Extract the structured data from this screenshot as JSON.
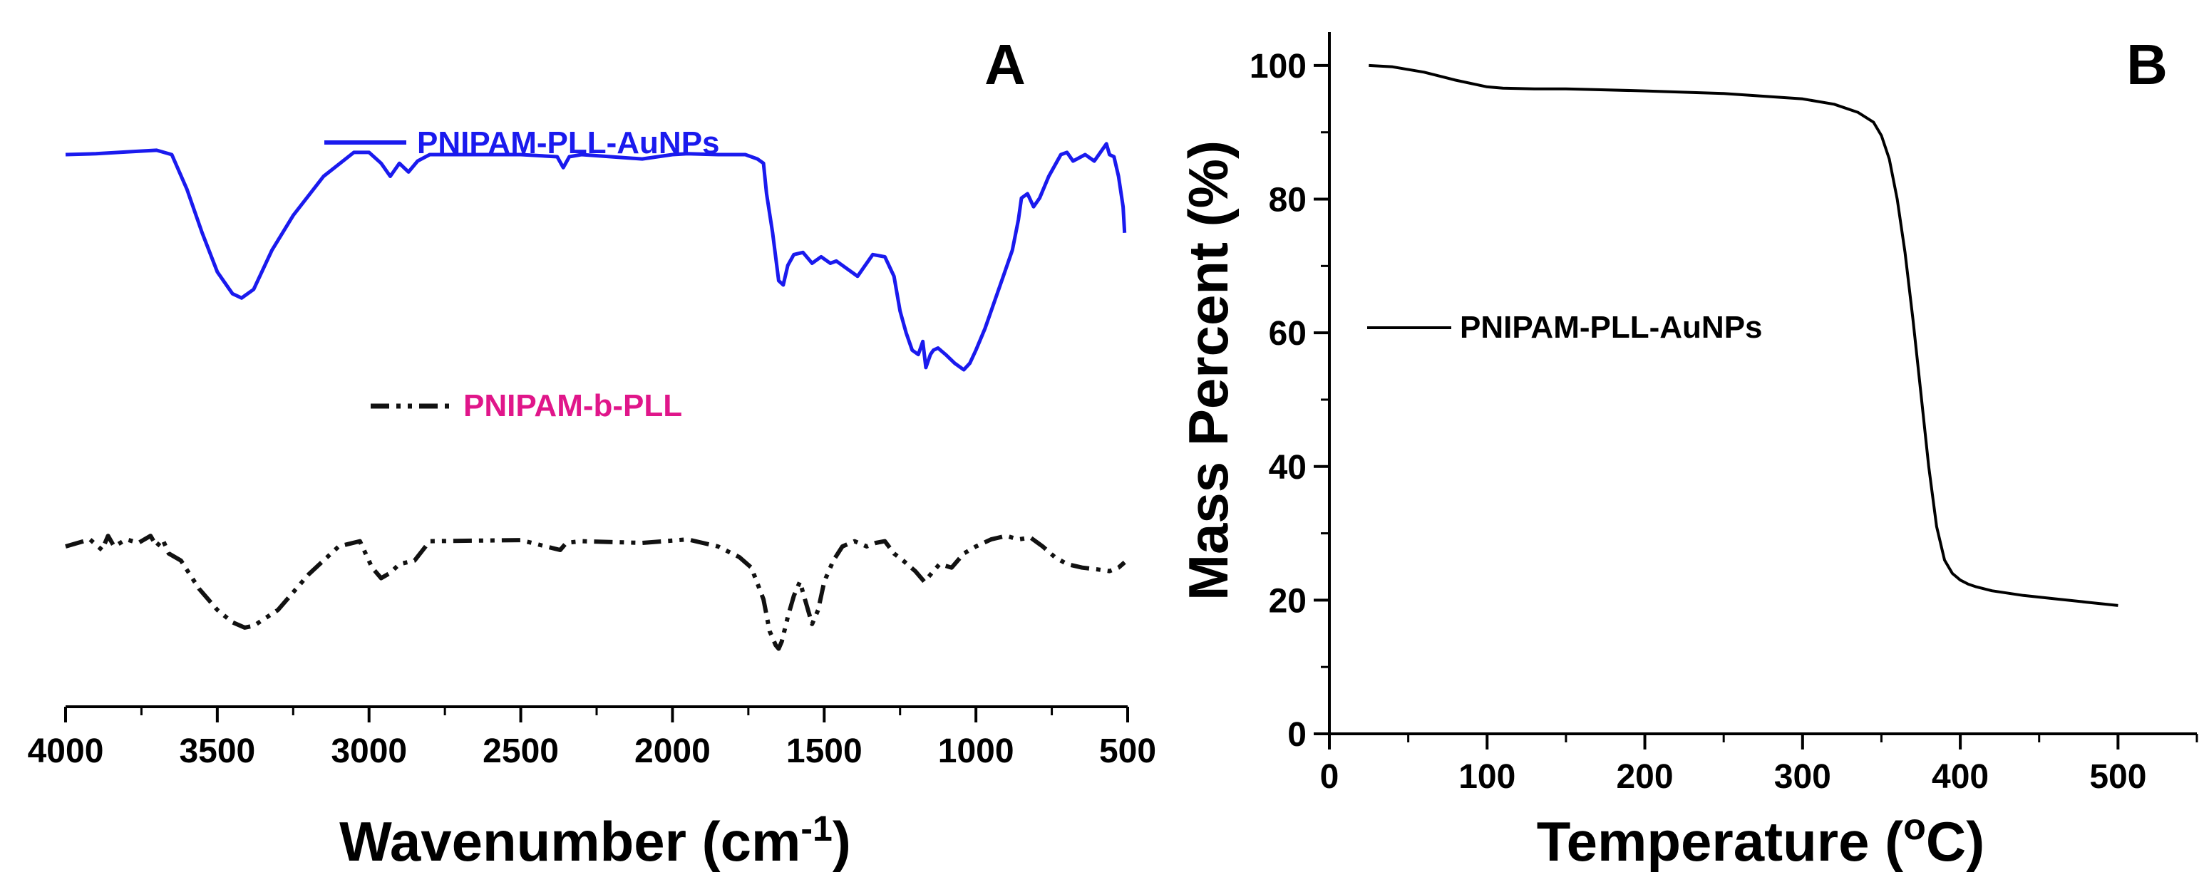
{
  "chart_data": [
    {
      "type": "line",
      "panel_label": "A",
      "title": "",
      "xlabel": "Wavenumber  (cm",
      "xlabel_sup": "-1",
      "xlabel_end": ")",
      "ylabel": "",
      "xlim": [
        4000,
        500
      ],
      "x_reversed": true,
      "xticks": [
        4000,
        3500,
        3000,
        2500,
        2000,
        1500,
        1000,
        500
      ],
      "y_axis_shown": false,
      "series": [
        {
          "name": "PNIPAM-PLL-AuNPs",
          "color": "#1a1aee",
          "dash": "solid",
          "x": [
            4000,
            3900,
            3800,
            3700,
            3650,
            3600,
            3550,
            3500,
            3450,
            3420,
            3380,
            3320,
            3250,
            3150,
            3050,
            3000,
            2960,
            2930,
            2900,
            2870,
            2840,
            2800,
            2500,
            2380,
            2360,
            2340,
            2300,
            2100,
            2000,
            1950,
            1850,
            1760,
            1720,
            1700,
            1690,
            1670,
            1650,
            1635,
            1620,
            1600,
            1570,
            1540,
            1510,
            1480,
            1460,
            1420,
            1390,
            1370,
            1340,
            1300,
            1270,
            1250,
            1230,
            1210,
            1190,
            1175,
            1165,
            1150,
            1140,
            1125,
            1100,
            1070,
            1040,
            1020,
            1000,
            970,
            940,
            910,
            880,
            860,
            850,
            830,
            810,
            790,
            760,
            720,
            700,
            680,
            640,
            610,
            590,
            570,
            560,
            545,
            530,
            515,
            510
          ],
          "y": [
            80.0,
            80.2,
            80.6,
            81.0,
            80.0,
            72.0,
            62.0,
            53.0,
            48.0,
            47.0,
            49.0,
            58.0,
            66.0,
            75.0,
            80.5,
            80.5,
            78.0,
            75.0,
            78.0,
            76.0,
            78.5,
            80.0,
            80.0,
            79.5,
            77.0,
            79.5,
            80.0,
            79.0,
            80.0,
            80.2,
            80.0,
            80.0,
            79.0,
            78.0,
            71.0,
            62.0,
            51.0,
            50.0,
            54.5,
            57.0,
            57.5,
            55.0,
            56.5,
            55.0,
            55.5,
            53.5,
            52.0,
            54.0,
            57.0,
            56.5,
            52.0,
            44.0,
            39.0,
            35.0,
            34.0,
            37.0,
            31.0,
            34.0,
            35.0,
            35.5,
            34.0,
            32.0,
            30.5,
            32.0,
            35.0,
            40.0,
            46.0,
            52.0,
            58.0,
            65.0,
            70.0,
            71.0,
            68.0,
            70.0,
            75.0,
            80.0,
            80.5,
            78.5,
            80.0,
            78.5,
            80.5,
            82.5,
            80.0,
            79.5,
            75.0,
            68.0,
            62.0
          ]
        },
        {
          "name": "PNIPAM-b-PLL",
          "color": "#111111",
          "dash": "dashdot",
          "x": [
            4000,
            3920,
            3880,
            3860,
            3840,
            3800,
            3760,
            3720,
            3700,
            3680,
            3660,
            3620,
            3560,
            3500,
            3450,
            3410,
            3380,
            3300,
            3200,
            3100,
            3030,
            2990,
            2960,
            2930,
            2900,
            2850,
            2800,
            2500,
            2370,
            2350,
            2300,
            2100,
            1950,
            1850,
            1780,
            1740,
            1700,
            1680,
            1660,
            1650,
            1640,
            1620,
            1600,
            1580,
            1560,
            1540,
            1520,
            1500,
            1470,
            1440,
            1400,
            1360,
            1330,
            1300,
            1270,
            1240,
            1200,
            1170,
            1150,
            1120,
            1080,
            1040,
            1000,
            950,
            900,
            860,
            820,
            780,
            740,
            700,
            650,
            600,
            560,
            530,
            510
          ],
          "y": [
            40.0,
            42.0,
            39.0,
            43.0,
            40.0,
            42.0,
            41.0,
            43.0,
            40.0,
            42.0,
            38.0,
            36.0,
            28.0,
            22.0,
            18.5,
            17.0,
            17.5,
            22.0,
            32.0,
            40.0,
            41.5,
            34.0,
            31.0,
            32.5,
            35.0,
            36.0,
            41.5,
            41.8,
            39.0,
            41.0,
            41.5,
            41.0,
            42.0,
            40.0,
            37.0,
            34.0,
            25.0,
            16.0,
            12.0,
            11.0,
            13.0,
            20.0,
            26.0,
            30.0,
            24.0,
            18.0,
            22.0,
            30.0,
            36.0,
            40.0,
            41.5,
            40.0,
            41.0,
            41.5,
            38.0,
            36.0,
            33.0,
            30.0,
            32.0,
            35.0,
            34.0,
            38.0,
            40.0,
            42.0,
            43.0,
            42.0,
            42.5,
            40.0,
            37.0,
            35.0,
            34.0,
            33.5,
            33.0,
            34.0,
            35.5
          ]
        }
      ],
      "legend": [
        {
          "label": "PNIPAM-PLL-AuNPs",
          "color": "#1a1aee",
          "label_color": "#1a1aee",
          "dash": "solid"
        },
        {
          "label": "PNIPAM-b-PLL",
          "color": "#111111",
          "label_color": "#e0168a",
          "dash": "dashdot"
        }
      ]
    },
    {
      "type": "line",
      "panel_label": "B",
      "title": "",
      "xlabel": "Temperature (",
      "xlabel_sup": "o",
      "xlabel_end": "C)",
      "ylabel": "Mass Percent (%)",
      "xlim": [
        0,
        550
      ],
      "ylim": [
        0,
        105
      ],
      "xticks": [
        0,
        100,
        200,
        300,
        400,
        500
      ],
      "yticks": [
        0,
        20,
        40,
        60,
        80,
        100
      ],
      "series": [
        {
          "name": "PNIPAM-PLL-AuNPs",
          "color": "#000000",
          "dash": "solid",
          "x": [
            25,
            40,
            60,
            80,
            100,
            110,
            130,
            150,
            200,
            250,
            300,
            320,
            335,
            345,
            350,
            355,
            360,
            365,
            370,
            375,
            380,
            385,
            390,
            395,
            400,
            405,
            410,
            420,
            440,
            460,
            480,
            500
          ],
          "y": [
            100,
            99.8,
            99.0,
            97.8,
            96.8,
            96.6,
            96.5,
            96.5,
            96.2,
            95.8,
            95.0,
            94.2,
            93.0,
            91.5,
            89.5,
            86.0,
            80.0,
            72.0,
            62.0,
            51.0,
            40.0,
            31.0,
            26.0,
            24.0,
            23.0,
            22.4,
            22.0,
            21.4,
            20.7,
            20.2,
            19.7,
            19.2
          ]
        }
      ],
      "legend": [
        {
          "label": "PNIPAM-PLL-AuNPs",
          "color": "#000000",
          "label_color": "#000000",
          "dash": "solid"
        }
      ]
    }
  ]
}
